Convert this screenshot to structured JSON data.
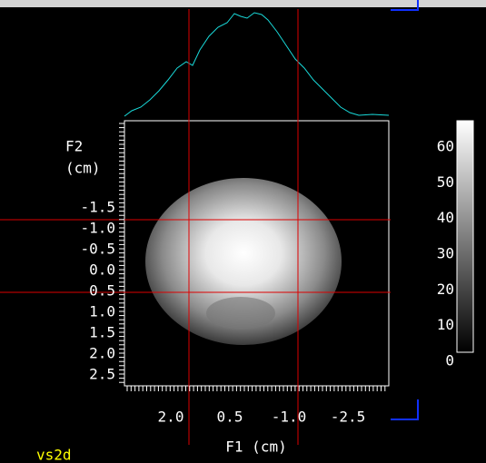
{
  "image_axes": {
    "y_label": [
      "F2",
      "(cm)"
    ],
    "y_ticks": [
      "-1.5",
      "-1.0",
      "-0.5",
      "0.0",
      "0.5",
      "1.0",
      "1.5",
      "2.0",
      "2.5"
    ],
    "x_ticks": [
      "2.0",
      "0.5",
      "-1.0",
      "-2.5"
    ],
    "x_label": "F1 (cm)"
  },
  "colorbar": {
    "ticks": [
      "60",
      "50",
      "40",
      "30",
      "20",
      "10",
      "0"
    ]
  },
  "window_label": "vs2d"
}
